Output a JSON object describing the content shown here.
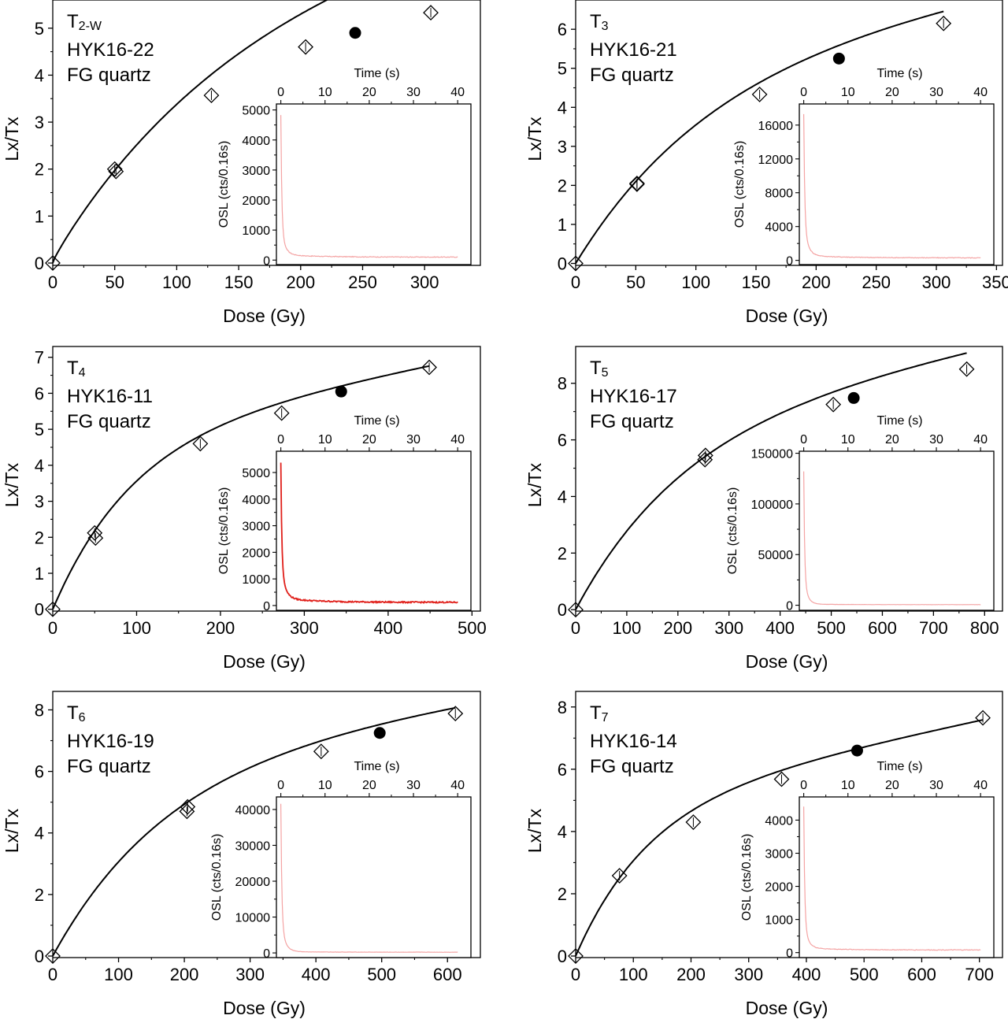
{
  "figure": {
    "colors": {
      "axis": "#000000",
      "curve": "#000000",
      "marker_open": "#ffffff",
      "marker_filled": "#000000",
      "osl_light": "#f4a3a3",
      "osl_dark": "#e0201b"
    }
  },
  "chart_data": [
    {
      "type": "scatter",
      "label": {
        "prefix": "T",
        "sub": "2-W",
        "sample": "HYK16-22",
        "material": "FG quartz"
      },
      "xlabel": "Dose (Gy)",
      "ylabel": "Lx/Tx",
      "xlim": [
        0,
        345
      ],
      "ylim": [
        -0.05,
        5.6
      ],
      "xticks": [
        0,
        50,
        100,
        150,
        200,
        250,
        300
      ],
      "yticks": [
        0,
        1,
        2,
        3,
        4,
        5
      ],
      "points": [
        [
          0,
          0
        ],
        [
          50,
          2.0
        ],
        [
          51,
          1.95
        ],
        [
          128,
          3.57
        ],
        [
          204,
          4.6
        ],
        [
          305,
          5.33
        ]
      ],
      "natural": [
        [
          244,
          4.9
        ]
      ],
      "fit": {
        "model": "sat_exp_plus_lin",
        "a": 5.8,
        "d0": 160,
        "b": 0.0033,
        "c": 0.25
      },
      "inset": {
        "xlabel": "Time (s)",
        "ylabel": "OSL (cts/0.16s)",
        "xlim": [
          -1,
          43
        ],
        "ylim": [
          -150,
          5200
        ],
        "xticks": [
          0,
          10,
          20,
          30,
          40
        ],
        "yticks": [
          0,
          1000,
          2000,
          3000,
          4000,
          5000
        ],
        "curve": {
          "peak": 4750,
          "baseline": 100,
          "fast_amp": 3800,
          "fast_tau": 0.22,
          "slow_amp": 850,
          "slow_tau": 0.9,
          "tail_amp": 80,
          "tail_tau": 8,
          "noise": 12,
          "t_end": 40,
          "style": "light"
        }
      }
    },
    {
      "type": "scatter",
      "label": {
        "prefix": "T",
        "sub": "3",
        "sample": "HYK16-21",
        "material": "FG quartz"
      },
      "xlabel": "Dose (Gy)",
      "ylabel": "Lx/Tx",
      "xlim": [
        0,
        355
      ],
      "ylim": [
        -0.05,
        6.75
      ],
      "xticks": [
        0,
        50,
        100,
        150,
        200,
        250,
        300,
        350
      ],
      "yticks": [
        0,
        1,
        2,
        3,
        4,
        5,
        6
      ],
      "points": [
        [
          0,
          0
        ],
        [
          51,
          2.03
        ],
        [
          51,
          2.05
        ],
        [
          153,
          4.33
        ],
        [
          306,
          6.15
        ]
      ],
      "natural": [
        [
          219,
          5.25
        ]
      ],
      "fit": {
        "model": "sat_exp_plus_lin",
        "a": 5.2,
        "d0": 115,
        "b": 0.0053,
        "c": 0
      },
      "inset": {
        "xlabel": "Time (s)",
        "ylabel": "OSL (cts/0.16s)",
        "xlim": [
          -1,
          43
        ],
        "ylim": [
          -500,
          18500
        ],
        "xticks": [
          0,
          10,
          20,
          30,
          40
        ],
        "yticks": [
          0,
          4000,
          8000,
          12000,
          16000
        ],
        "curve": {
          "peak": 17300,
          "baseline": 300,
          "fast_amp": 13000,
          "fast_tau": 0.22,
          "slow_amp": 3700,
          "slow_tau": 0.9,
          "tail_amp": 300,
          "tail_tau": 8,
          "noise": 40,
          "t_end": 40,
          "style": "light"
        }
      }
    },
    {
      "type": "scatter",
      "label": {
        "prefix": "T",
        "sub": "4",
        "sample": "HYK16-11",
        "material": "FG quartz"
      },
      "xlabel": "Dose (Gy)",
      "ylabel": "Lx/Tx",
      "xlim": [
        0,
        510
      ],
      "ylim": [
        -0.05,
        7.3
      ],
      "xticks": [
        0,
        100,
        200,
        300,
        400,
        500
      ],
      "yticks": [
        0,
        1,
        2,
        3,
        4,
        5,
        6,
        7
      ],
      "points": [
        [
          0,
          0
        ],
        [
          50,
          2.12
        ],
        [
          51,
          1.98
        ],
        [
          176,
          4.6
        ],
        [
          273,
          5.45
        ],
        [
          449,
          6.72
        ]
      ],
      "natural": [
        [
          344,
          6.05
        ]
      ],
      "fit": {
        "model": "sat_exp_plus_lin",
        "a": 4.78,
        "d0": 95,
        "b": 0.0045,
        "c": 0
      },
      "inset": {
        "xlabel": "Time (s)",
        "ylabel": "OSL (cts/0.16s)",
        "xlim": [
          -1,
          43
        ],
        "ylim": [
          -180,
          5800
        ],
        "xticks": [
          0,
          10,
          20,
          30,
          40
        ],
        "yticks": [
          0,
          1000,
          2000,
          3000,
          4000,
          5000
        ],
        "curve": {
          "peak": 5350,
          "baseline": 120,
          "fast_amp": 3900,
          "fast_tau": 0.22,
          "slow_amp": 1200,
          "slow_tau": 0.95,
          "tail_amp": 150,
          "tail_tau": 8,
          "noise": 25,
          "t_end": 40,
          "style": "dark"
        }
      }
    },
    {
      "type": "scatter",
      "label": {
        "prefix": "T",
        "sub": "5",
        "sample": "HYK16-17",
        "material": "FG quartz"
      },
      "xlabel": "Dose (Gy)",
      "ylabel": "Lx/Tx",
      "xlim": [
        0,
        835
      ],
      "ylim": [
        -0.05,
        9.3
      ],
      "xticks": [
        0,
        100,
        200,
        300,
        400,
        500,
        600,
        700,
        800
      ],
      "yticks": [
        0,
        2,
        4,
        6,
        8
      ],
      "points": [
        [
          0,
          0
        ],
        [
          253,
          5.3
        ],
        [
          254,
          5.45
        ],
        [
          504,
          7.25
        ],
        [
          765,
          8.5
        ]
      ],
      "natural": [
        [
          544,
          7.48
        ]
      ],
      "fit": {
        "model": "sat_exp_plus_lin",
        "a": 6.5,
        "d0": 215,
        "b": 0.0036,
        "c": 0
      },
      "inset": {
        "xlabel": "Time (s)",
        "ylabel": "OSL (cts/0.16s)",
        "xlim": [
          -1,
          43
        ],
        "ylim": [
          -5000,
          152000
        ],
        "xticks": [
          0,
          10,
          20,
          30,
          40
        ],
        "yticks": [
          0,
          50000,
          100000,
          150000
        ],
        "curve": {
          "peak": 132000,
          "baseline": 600,
          "fast_amp": 105000,
          "fast_tau": 0.2,
          "slow_amp": 26000,
          "slow_tau": 0.8,
          "tail_amp": 500,
          "tail_tau": 8,
          "noise": 80,
          "t_end": 40,
          "style": "light"
        }
      }
    },
    {
      "type": "scatter",
      "label": {
        "prefix": "T",
        "sub": "6",
        "sample": "HYK16-19",
        "material": "FG quartz"
      },
      "xlabel": "Dose (Gy)",
      "ylabel": "Lx/Tx",
      "xlim": [
        0,
        650
      ],
      "ylim": [
        -0.05,
        8.6
      ],
      "xticks": [
        0,
        100,
        200,
        300,
        400,
        500,
        600
      ],
      "yticks": [
        0,
        2,
        4,
        6,
        8
      ],
      "points": [
        [
          0,
          0
        ],
        [
          204,
          4.7
        ],
        [
          205,
          4.85
        ],
        [
          408,
          6.65
        ],
        [
          612,
          7.88
        ]
      ],
      "natural": [
        [
          497,
          7.25
        ]
      ],
      "fit": {
        "model": "sat_exp_plus_lin",
        "a": 6.3,
        "d0": 175,
        "b": 0.0032,
        "c": 0
      },
      "inset": {
        "xlabel": "Time (s)",
        "ylabel": "OSL (cts/0.16s)",
        "xlim": [
          -1,
          43
        ],
        "ylim": [
          -1300,
          43500
        ],
        "xticks": [
          0,
          10,
          20,
          30,
          40
        ],
        "yticks": [
          0,
          10000,
          20000,
          30000,
          40000
        ],
        "curve": {
          "peak": 41500,
          "baseline": 200,
          "fast_amp": 33000,
          "fast_tau": 0.22,
          "slow_amp": 8200,
          "slow_tau": 0.9,
          "tail_amp": 200,
          "tail_tau": 8,
          "noise": 40,
          "t_end": 40,
          "style": "light"
        }
      }
    },
    {
      "type": "scatter",
      "label": {
        "prefix": "T",
        "sub": "7",
        "sample": "HYK16-14",
        "material": "FG quartz"
      },
      "xlabel": "Dose (Gy)",
      "ylabel": "Lx/Tx",
      "xlim": [
        0,
        740
      ],
      "ylim": [
        -0.05,
        8.5
      ],
      "xticks": [
        0,
        100,
        200,
        300,
        400,
        500,
        600,
        700
      ],
      "yticks": [
        0,
        2,
        4,
        6,
        8
      ],
      "points": [
        [
          0,
          0
        ],
        [
          76,
          2.58
        ],
        [
          204,
          4.3
        ],
        [
          357,
          5.68
        ],
        [
          706,
          7.65
        ]
      ],
      "natural": [
        [
          488,
          6.6
        ]
      ],
      "fit": {
        "model": "sat_exp_plus_lin",
        "a": 4.85,
        "d0": 125,
        "b": 0.0039,
        "c": 0
      },
      "inset": {
        "xlabel": "Time (s)",
        "ylabel": "OSL (cts/0.16s)",
        "xlim": [
          -1,
          43
        ],
        "ylim": [
          -150,
          4700
        ],
        "xticks": [
          0,
          10,
          20,
          30,
          40
        ],
        "yticks": [
          0,
          1000,
          2000,
          3000,
          4000
        ],
        "curve": {
          "peak": 4350,
          "baseline": 80,
          "fast_amp": 3500,
          "fast_tau": 0.22,
          "slow_amp": 770,
          "slow_tau": 0.9,
          "tail_amp": 60,
          "tail_tau": 8,
          "noise": 10,
          "t_end": 40,
          "style": "light"
        }
      }
    }
  ]
}
